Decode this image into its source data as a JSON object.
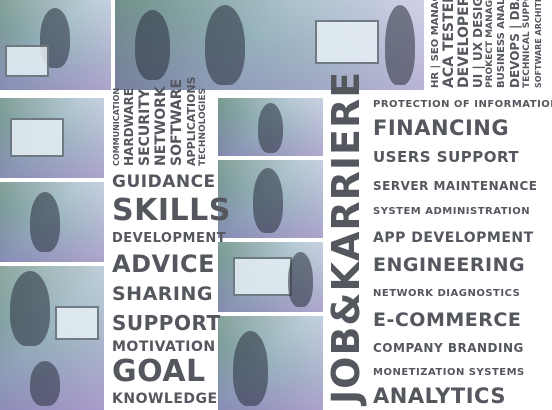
{
  "top_right_roles": [
    "HR | SEO MANAGERS",
    "ACA TESTER",
    "DEVELOPER",
    "UI | UX DESIGNER",
    "PROKECT MANAGER",
    "BUSINESS ANALYST",
    "DEVOPS | DBAS",
    "TECHNICAL SUPPORT",
    "SOFTWARE ARCHITECT"
  ],
  "middle_vertical": [
    "COMMUNICATION",
    "HARDWARE",
    "SECURITY",
    "NETWORK",
    "SOFTWARE",
    "APPLICATIONS",
    "TECHNOLOGIES"
  ],
  "middle_words": [
    "GUIDANCE",
    "SKILLS",
    "DEVELOPMENT",
    "ADVICE",
    "SHARING",
    "SUPPORT",
    "MOTIVATION",
    "GOAL",
    "KNOWLEDGE"
  ],
  "big_vertical": "JOB&KARRIERE",
  "right_words": [
    "PROTECTION OF INFORMATION",
    "FINANCING",
    "USERS SUPPORT",
    "SERVER MAINTENANCE",
    "SYSTEM ADMINISTRATION",
    "APP DEVELOPMENT",
    "ENGINEERING",
    "NETWORK DIAGNOSTICS",
    "E-COMMERCE",
    "COMPANY BRANDING",
    "MONETIZATION SYSTEMS",
    "ANALYTICS"
  ],
  "colors": {
    "text": "#55575f",
    "accent_purple": "#c9b6e6",
    "accent_green": "#6f8f86"
  }
}
